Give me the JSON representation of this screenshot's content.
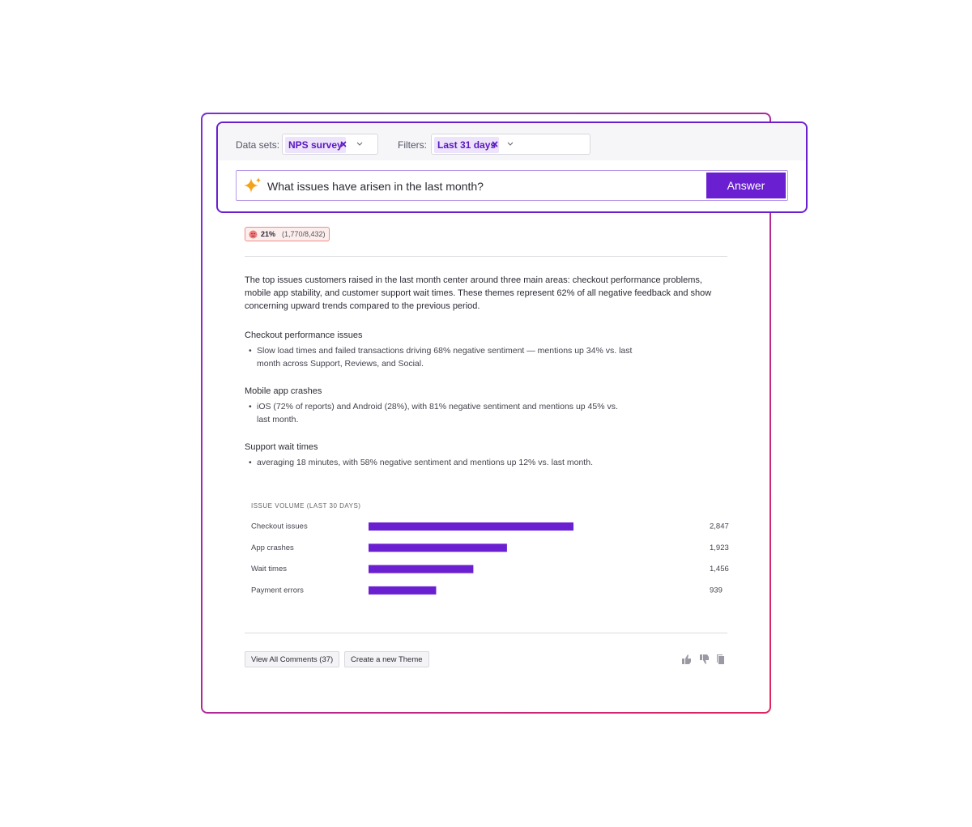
{
  "query_bar": {
    "datasets_label": "Data sets:",
    "dataset": "NPS survey",
    "filters_label": "Filters:",
    "filter": "Last 31 days",
    "question": "What issues have arisen in the last month?",
    "button": "Answer"
  },
  "sentiment": {
    "percent": "21%",
    "counts": "(1,770/8,432)"
  },
  "summary": "The top issues customers raised in the last month center around three main areas: checkout performance problems, mobile app stability, and customer support wait times. These themes represent 62% of all negative feedback and show concerning upward trends compared to the previous period.",
  "sections": [
    {
      "heading": "Checkout performance issues",
      "bullets": [
        "Slow load times and failed transactions driving 68% negative sentiment — mentions up 34% vs. last month across Support, Reviews, and Social."
      ]
    },
    {
      "heading": "Mobile app crashes",
      "bullets": [
        "iOS (72% of reports) and Android (28%), with 81% negative sentiment and mentions up 45% vs. last month."
      ]
    },
    {
      "heading": "Support wait times",
      "bullets": [
        "averaging 18 minutes, with 58% negative sentiment and mentions up 12% vs. last month."
      ]
    }
  ],
  "chart_data": {
    "type": "bar",
    "title": "ISSUE VOLUME (LAST 30 DAYS)",
    "categories": [
      "Checkout issues",
      "App crashes",
      "Wait times",
      "Payment errors"
    ],
    "values": [
      2847,
      1923,
      1456,
      939
    ],
    "value_labels": [
      "2,847",
      "1,923",
      "1,456",
      "939"
    ],
    "color": "#6a1fd1"
  },
  "actions": [
    "View All Comments (37)",
    "Create a new Theme"
  ]
}
